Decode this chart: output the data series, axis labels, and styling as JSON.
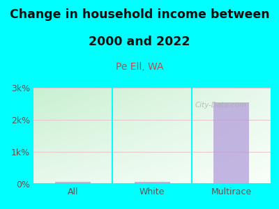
{
  "title_line1": "Change in household income between",
  "title_line2": "2000 and 2022",
  "subtitle": "Pe Ell, WA",
  "categories": [
    "All",
    "White",
    "Multirace"
  ],
  "values": [
    70,
    60,
    2550
  ],
  "bar_color": "#b39ddb",
  "bar_alpha": 0.75,
  "background_color": "#00ffff",
  "plot_bg_topleft": "#c8f0d0",
  "plot_bg_bottomright": "#f8fff8",
  "title_fontsize": 12.5,
  "subtitle_fontsize": 10,
  "subtitle_color": "#b05050",
  "tick_label_color": "#555555",
  "ylim": [
    0,
    3000
  ],
  "yticks": [
    0,
    1000,
    2000,
    3000
  ],
  "ytick_labels": [
    "0%",
    "1k%",
    "2k%",
    "3k%"
  ],
  "grid_color": "#e8c8d0",
  "watermark": "City-Data.com",
  "divider_color": "#00ffff"
}
